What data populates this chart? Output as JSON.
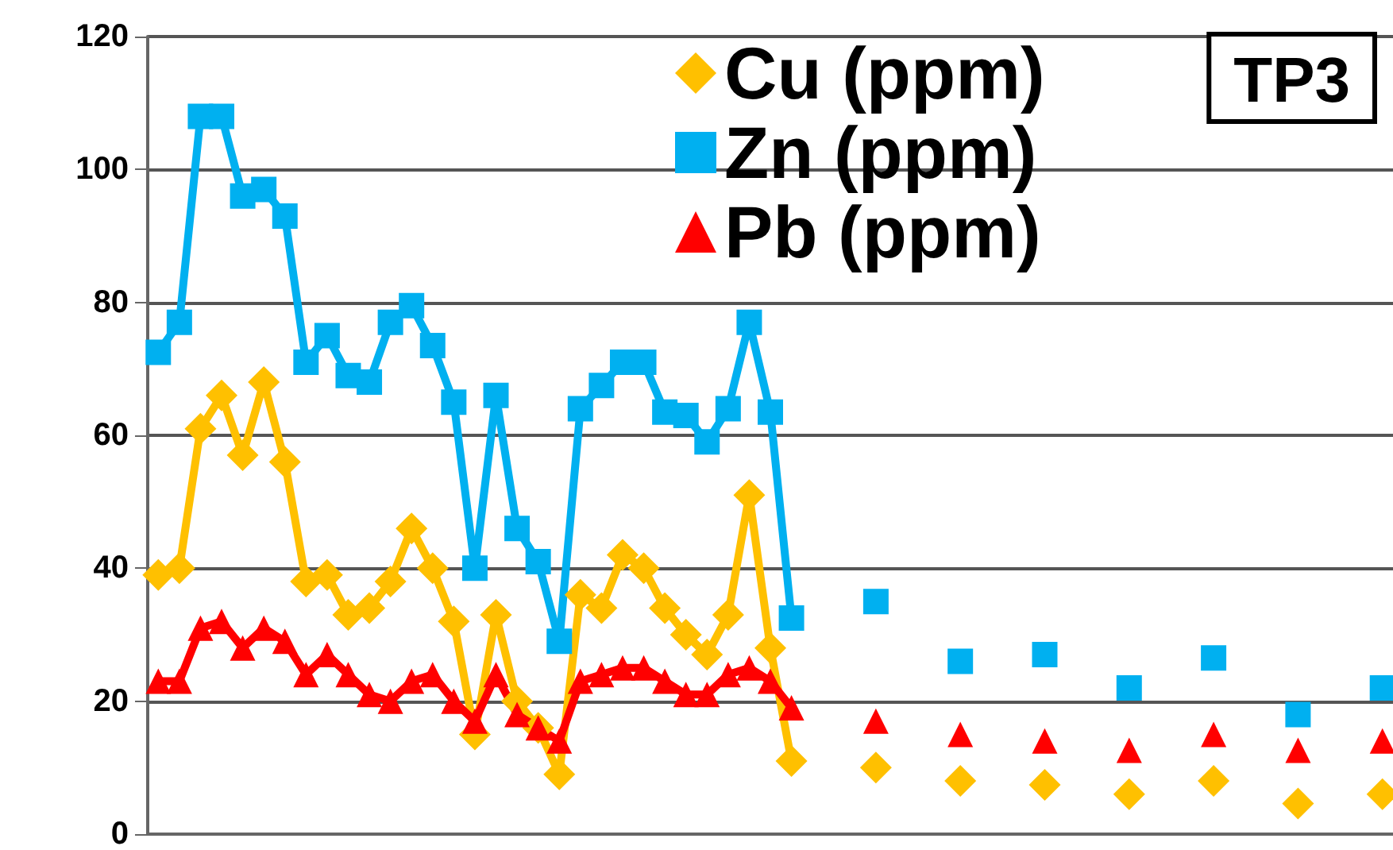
{
  "chart_data": {
    "type": "line",
    "categories": [
      null,
      null,
      null,
      null,
      null,
      null,
      null,
      null,
      null,
      null,
      null,
      null,
      null,
      null,
      null,
      null,
      null,
      null,
      null,
      null,
      null,
      null,
      null,
      null,
      null,
      null,
      null,
      null,
      null,
      null,
      null,
      null,
      null,
      null,
      null,
      null,
      null,
      null,
      null,
      null,
      null,
      null,
      null,
      null,
      null,
      null,
      null,
      null,
      null,
      null,
      null,
      null,
      null,
      null,
      null,
      null,
      null,
      null,
      null
    ],
    "series": [
      {
        "name": "Cu (ppm)",
        "color": "#ffc000",
        "marker": "diamond",
        "values": [
          39,
          40,
          61,
          66,
          57,
          68,
          56,
          38,
          39,
          33,
          34,
          38,
          46,
          40,
          32,
          15,
          33,
          20,
          16,
          9,
          36,
          34,
          42,
          40,
          34,
          30,
          27,
          33,
          51,
          28,
          11,
          null,
          null,
          null,
          null,
          null,
          null,
          null,
          null,
          null,
          null,
          null,
          null,
          null,
          null,
          null,
          null,
          null,
          null,
          null,
          null,
          null,
          null,
          null,
          null,
          null,
          null,
          null,
          null
        ]
      },
      {
        "name": "Zn (ppm)",
        "color": "#00b0f0",
        "marker": "square",
        "values": [
          72.5,
          77,
          108,
          108,
          96,
          97,
          93,
          71,
          75,
          69,
          68,
          77,
          79.5,
          73.5,
          65,
          40,
          66,
          46,
          41,
          29,
          64,
          67.5,
          71,
          71,
          63.5,
          63,
          59,
          64,
          77,
          63.5,
          32.5,
          null,
          null,
          null,
          null,
          null,
          null,
          null,
          null,
          null,
          null,
          null,
          null,
          null,
          null,
          null,
          null,
          null,
          null,
          null,
          null,
          null,
          null,
          null,
          null,
          null,
          null,
          null,
          null
        ]
      },
      {
        "name": "Pb (ppm)",
        "color": "#ff0000",
        "marker": "triangle",
        "values": [
          23,
          23,
          31,
          32,
          28,
          31,
          29,
          24,
          27,
          24,
          21,
          20,
          23,
          24,
          20,
          17,
          24,
          18,
          16,
          14,
          23,
          24,
          25,
          25,
          23,
          21,
          21,
          24,
          25,
          23,
          19,
          null,
          null,
          null,
          null,
          null,
          null,
          null,
          null,
          null,
          null,
          null,
          null,
          null,
          null,
          null,
          null,
          null,
          null,
          null,
          null,
          null,
          null,
          null,
          null,
          null,
          null,
          null,
          null
        ]
      },
      {
        "type": "scatter",
        "color": "#ffc000",
        "marker": "diamond",
        "values": [
          null,
          null,
          null,
          null,
          null,
          null,
          null,
          null,
          null,
          null,
          null,
          null,
          null,
          null,
          null,
          null,
          null,
          null,
          null,
          null,
          null,
          null,
          null,
          null,
          null,
          null,
          null,
          null,
          null,
          null,
          null,
          null,
          null,
          null,
          10,
          null,
          null,
          null,
          8,
          null,
          null,
          null,
          7.4,
          null,
          null,
          null,
          6,
          null,
          null,
          null,
          8,
          null,
          null,
          null,
          4.6,
          null,
          null,
          null,
          6
        ]
      },
      {
        "type": "scatter",
        "color": "#00b0f0",
        "marker": "square",
        "values": [
          null,
          null,
          null,
          null,
          null,
          null,
          null,
          null,
          null,
          null,
          null,
          null,
          null,
          null,
          null,
          null,
          null,
          null,
          null,
          null,
          null,
          null,
          null,
          null,
          null,
          null,
          null,
          null,
          null,
          null,
          null,
          null,
          null,
          null,
          35,
          null,
          null,
          null,
          26,
          null,
          null,
          null,
          27,
          null,
          null,
          null,
          22,
          null,
          null,
          null,
          26.5,
          null,
          null,
          null,
          18,
          null,
          null,
          null,
          22
        ]
      },
      {
        "type": "scatter",
        "color": "#ff0000",
        "marker": "triangle",
        "values": [
          null,
          null,
          null,
          null,
          null,
          null,
          null,
          null,
          null,
          null,
          null,
          null,
          null,
          null,
          null,
          null,
          null,
          null,
          null,
          null,
          null,
          null,
          null,
          null,
          null,
          null,
          null,
          null,
          null,
          null,
          null,
          null,
          null,
          null,
          17,
          null,
          null,
          null,
          15,
          null,
          null,
          null,
          14,
          null,
          null,
          null,
          12.6,
          null,
          null,
          null,
          15,
          null,
          null,
          null,
          12.6,
          null,
          null,
          null,
          14
        ]
      }
    ],
    "ylim": [
      0,
      120
    ],
    "yticks": [
      0,
      20,
      40,
      60,
      80,
      100,
      120
    ],
    "grid": "y",
    "legend": "top",
    "tick_labels": "y",
    "annotations": [
      "TP3"
    ]
  }
}
